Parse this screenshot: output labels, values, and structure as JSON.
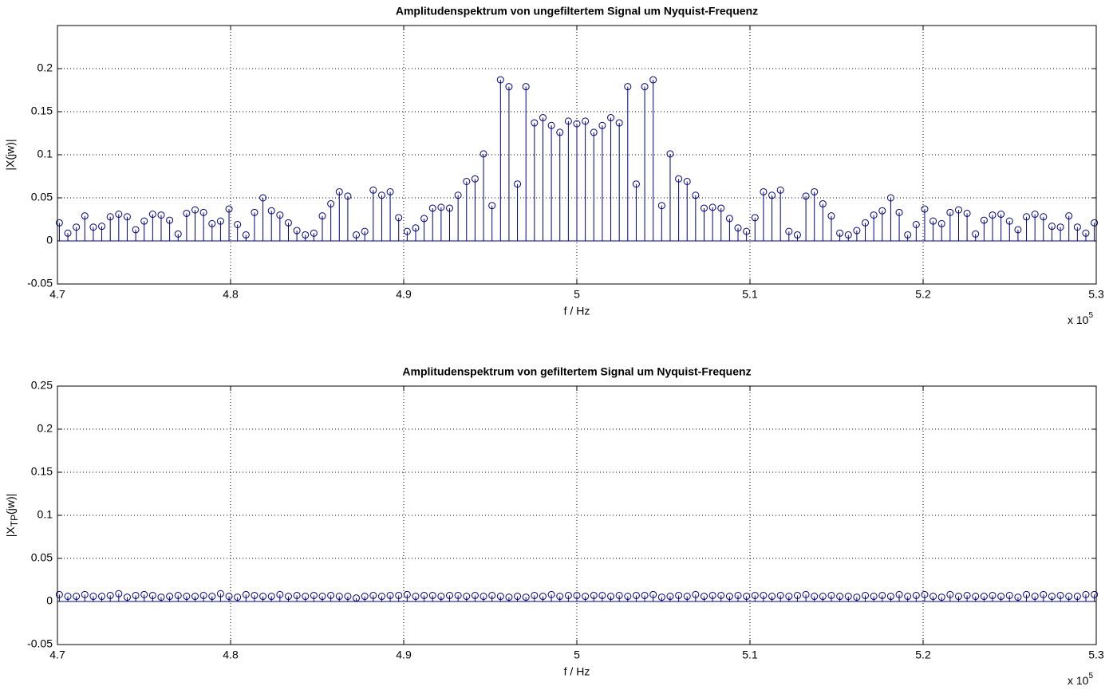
{
  "chart_data": [
    {
      "type": "stem",
      "title": "Amplitudenspektrum von ungefiltertem Signal um Nyquist-Frequenz",
      "xlabel": "f / Hz",
      "ylabel": "|X(jw)|",
      "x_multiplier": {
        "base": "x 10",
        "exponent": "5"
      },
      "color": "#00007f",
      "grid": true,
      "xlim": [
        4.7,
        5.3
      ],
      "xticks": [
        4.7,
        4.8,
        4.9,
        5,
        5.1,
        5.2,
        5.3
      ],
      "ylim": [
        -0.05,
        0.25
      ],
      "yticks": [
        -0.05,
        0,
        0.05,
        0.1,
        0.15,
        0.2
      ],
      "x": [
        4.7011,
        4.706,
        4.7109,
        4.7158,
        4.7207,
        4.7256,
        4.7305,
        4.7354,
        4.7403,
        4.7452,
        4.7501,
        4.755,
        4.7599,
        4.7648,
        4.7697,
        4.7746,
        4.7795,
        4.7844,
        4.7893,
        4.7942,
        4.7991,
        4.804,
        4.8089,
        4.8138,
        4.8187,
        4.8236,
        4.8285,
        4.8334,
        4.8383,
        4.8432,
        4.8481,
        4.853,
        4.8579,
        4.8628,
        4.8677,
        4.8726,
        4.8775,
        4.8824,
        4.8873,
        4.8922,
        4.8971,
        4.902,
        4.9069,
        4.9118,
        4.9167,
        4.9216,
        4.9265,
        4.9314,
        4.9363,
        4.9412,
        4.9461,
        4.951,
        4.9559,
        4.9608,
        4.9657,
        4.9706,
        4.9755,
        4.9804,
        4.9853,
        4.9902,
        4.9951,
        5,
        5.0049,
        5.0098,
        5.0147,
        5.0196,
        5.0245,
        5.0294,
        5.0343,
        5.0392,
        5.0441,
        5.049,
        5.0539,
        5.0588,
        5.0637,
        5.0686,
        5.0735,
        5.0784,
        5.0833,
        5.0882,
        5.0931,
        5.098,
        5.1029,
        5.1078,
        5.1127,
        5.1176,
        5.1225,
        5.1274,
        5.1323,
        5.1372,
        5.1421,
        5.147,
        5.1519,
        5.1568,
        5.1617,
        5.1666,
        5.1715,
        5.1764,
        5.1813,
        5.1862,
        5.1911,
        5.196,
        5.2009,
        5.2058,
        5.2107,
        5.2156,
        5.2205,
        5.2254,
        5.2303,
        5.2352,
        5.2401,
        5.245,
        5.2499,
        5.2548,
        5.2597,
        5.2646,
        5.2695,
        5.2744,
        5.2793,
        5.2842,
        5.2891,
        5.294,
        5.2989
      ],
      "values": [
        0.021,
        0.009,
        0.016,
        0.029,
        0.016,
        0.017,
        0.028,
        0.031,
        0.028,
        0.013,
        0.023,
        0.031,
        0.03,
        0.024,
        0.008,
        0.032,
        0.036,
        0.033,
        0.02,
        0.023,
        0.037,
        0.019,
        0.007,
        0.033,
        0.05,
        0.035,
        0.03,
        0.021,
        0.012,
        0.007,
        0.009,
        0.029,
        0.043,
        0.057,
        0.052,
        0.007,
        0.011,
        0.059,
        0.053,
        0.057,
        0.027,
        0.011,
        0.015,
        0.026,
        0.038,
        0.039,
        0.038,
        0.053,
        0.069,
        0.072,
        0.101,
        0.041,
        0.187,
        0.179,
        0.066,
        0.179,
        0.137,
        0.143,
        0.134,
        0.126,
        0.139,
        0.136,
        0.139,
        0.126,
        0.134,
        0.143,
        0.137,
        0.179,
        0.066,
        0.179,
        0.187,
        0.041,
        0.101,
        0.072,
        0.069,
        0.053,
        0.038,
        0.039,
        0.038,
        0.026,
        0.015,
        0.011,
        0.027,
        0.057,
        0.053,
        0.059,
        0.011,
        0.007,
        0.052,
        0.057,
        0.043,
        0.029,
        0.009,
        0.007,
        0.012,
        0.021,
        0.03,
        0.035,
        0.05,
        0.033,
        0.007,
        0.019,
        0.037,
        0.023,
        0.02,
        0.033,
        0.036,
        0.032,
        0.008,
        0.024,
        0.03,
        0.031,
        0.023,
        0.013,
        0.028,
        0.031,
        0.028,
        0.017,
        0.016,
        0.029,
        0.016,
        0.009,
        0.021
      ]
    },
    {
      "type": "stem",
      "title": "Amplitudenspektrum von gefiltertem Signal um Nyquist-Frequenz",
      "xlabel": "f / Hz",
      "ylabel": {
        "prefix": "|X",
        "subscript": "TP",
        "suffix": "(jw)|"
      },
      "x_multiplier": {
        "base": "x 10",
        "exponent": "5"
      },
      "color": "#00007f",
      "grid": true,
      "xlim": [
        4.7,
        5.3
      ],
      "xticks": [
        4.7,
        4.8,
        4.9,
        5,
        5.1,
        5.2,
        5.3
      ],
      "ylim": [
        -0.05,
        0.25
      ],
      "yticks": [
        -0.05,
        0,
        0.05,
        0.1,
        0.15,
        0.2,
        0.25
      ],
      "x": [
        4.7011,
        4.706,
        4.7109,
        4.7158,
        4.7207,
        4.7256,
        4.7305,
        4.7354,
        4.7403,
        4.7452,
        4.7501,
        4.755,
        4.7599,
        4.7648,
        4.7697,
        4.7746,
        4.7795,
        4.7844,
        4.7893,
        4.7942,
        4.7991,
        4.804,
        4.8089,
        4.8138,
        4.8187,
        4.8236,
        4.8285,
        4.8334,
        4.8383,
        4.8432,
        4.8481,
        4.853,
        4.8579,
        4.8628,
        4.8677,
        4.8726,
        4.8775,
        4.8824,
        4.8873,
        4.8922,
        4.8971,
        4.902,
        4.9069,
        4.9118,
        4.9167,
        4.9216,
        4.9265,
        4.9314,
        4.9363,
        4.9412,
        4.9461,
        4.951,
        4.9559,
        4.9608,
        4.9657,
        4.9706,
        4.9755,
        4.9804,
        4.9853,
        4.9902,
        4.9951,
        5,
        5.0049,
        5.0098,
        5.0147,
        5.0196,
        5.0245,
        5.0294,
        5.0343,
        5.0392,
        5.0441,
        5.049,
        5.0539,
        5.0588,
        5.0637,
        5.0686,
        5.0735,
        5.0784,
        5.0833,
        5.0882,
        5.0931,
        5.098,
        5.1029,
        5.1078,
        5.1127,
        5.1176,
        5.1225,
        5.1274,
        5.1323,
        5.1372,
        5.1421,
        5.147,
        5.1519,
        5.1568,
        5.1617,
        5.1666,
        5.1715,
        5.1764,
        5.1813,
        5.1862,
        5.1911,
        5.196,
        5.2009,
        5.2058,
        5.2107,
        5.2156,
        5.2205,
        5.2254,
        5.2303,
        5.2352,
        5.2401,
        5.245,
        5.2499,
        5.2548,
        5.2597,
        5.2646,
        5.2695,
        5.2744,
        5.2793,
        5.2842,
        5.2891,
        5.294,
        5.2989
      ],
      "values": [
        0.008,
        0.006,
        0.006,
        0.008,
        0.006,
        0.006,
        0.007,
        0.009,
        0.005,
        0.007,
        0.008,
        0.007,
        0.005,
        0.006,
        0.007,
        0.006,
        0.006,
        0.007,
        0.006,
        0.009,
        0.006,
        0.005,
        0.008,
        0.007,
        0.006,
        0.006,
        0.008,
        0.006,
        0.007,
        0.006,
        0.007,
        0.006,
        0.007,
        0.006,
        0.006,
        0.004,
        0.006,
        0.007,
        0.006,
        0.007,
        0.007,
        0.008,
        0.006,
        0.007,
        0.007,
        0.006,
        0.007,
        0.007,
        0.006,
        0.007,
        0.006,
        0.007,
        0.006,
        0.005,
        0.006,
        0.005,
        0.007,
        0.006,
        0.008,
        0.006,
        0.007,
        0.007,
        0.006,
        0.007,
        0.007,
        0.006,
        0.007,
        0.006,
        0.007,
        0.007,
        0.008,
        0.005,
        0.006,
        0.007,
        0.006,
        0.008,
        0.006,
        0.007,
        0.007,
        0.006,
        0.007,
        0.006,
        0.007,
        0.007,
        0.006,
        0.007,
        0.006,
        0.007,
        0.008,
        0.006,
        0.006,
        0.007,
        0.006,
        0.006,
        0.005,
        0.007,
        0.006,
        0.007,
        0.006,
        0.008,
        0.006,
        0.007,
        0.008,
        0.006,
        0.005,
        0.008,
        0.006,
        0.007,
        0.006,
        0.006,
        0.007,
        0.006,
        0.007,
        0.005,
        0.008,
        0.006,
        0.008,
        0.006,
        0.007,
        0.006,
        0.006,
        0.008,
        0.008
      ]
    }
  ]
}
